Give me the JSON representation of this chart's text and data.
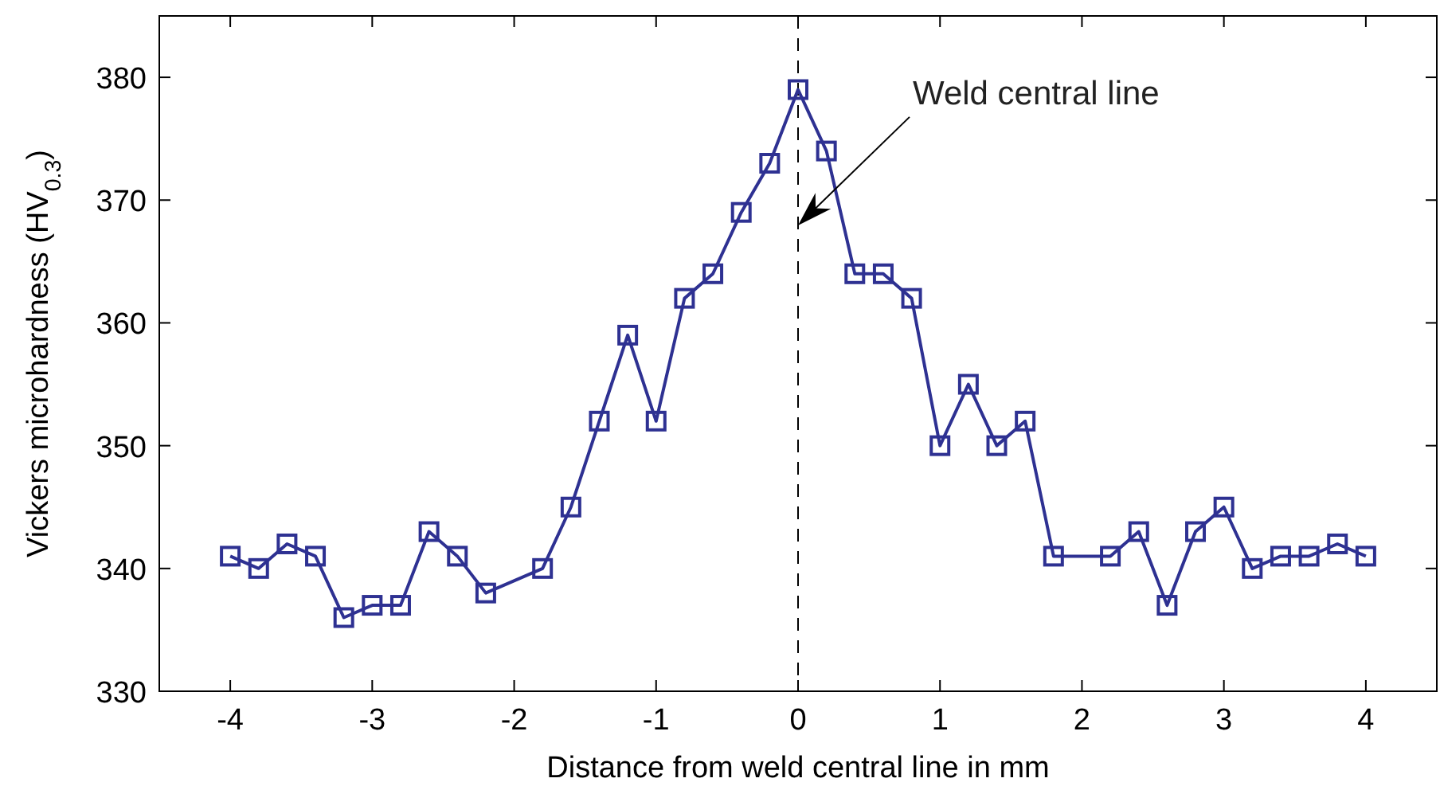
{
  "chart_data": {
    "type": "line",
    "xlabel": "Distance from weld central line in mm",
    "ylabel": "Vickers microhardness (HV$_{0.3}$)",
    "x": [
      -4,
      -3.8,
      -3.6,
      -3.4,
      -3.2,
      -3,
      -2.8,
      -2.6,
      -2.4,
      -2.2,
      -1.8,
      -1.6,
      -1.4,
      -1.2,
      -1,
      -0.8,
      -0.6,
      -0.4,
      -0.2,
      0,
      0.2,
      0.4,
      0.6,
      0.8,
      1,
      1.2,
      1.4,
      1.6,
      1.8,
      2.2,
      2.4,
      2.6,
      2.8,
      3,
      3.2,
      3.4,
      3.6,
      3.8,
      4
    ],
    "series": [
      {
        "color": "#2e3192",
        "values": [
          341,
          340,
          342,
          341,
          336,
          337,
          337,
          343,
          341,
          338,
          340,
          345,
          352,
          359,
          352,
          362,
          364,
          369,
          373,
          379,
          374,
          364,
          364,
          362,
          350,
          355,
          350,
          352,
          341,
          341,
          343,
          337,
          343,
          345,
          340,
          341,
          341,
          342,
          341
        ]
      }
    ],
    "xlim": [
      -4.5,
      4.5
    ],
    "xticks": [
      -4,
      -3,
      -2,
      -1,
      0,
      1,
      2,
      3,
      4
    ],
    "ylim": [
      330,
      385
    ],
    "yticks": [
      330,
      340,
      350,
      360,
      370,
      380
    ],
    "marker": "square",
    "line_style": "solid",
    "grid": false,
    "ref_lines": [
      {
        "axis": "x",
        "value": 0,
        "label": null,
        "color": "#000000",
        "line_style": "dashed"
      }
    ],
    "annotations": [
      "Weld central line"
    ]
  }
}
